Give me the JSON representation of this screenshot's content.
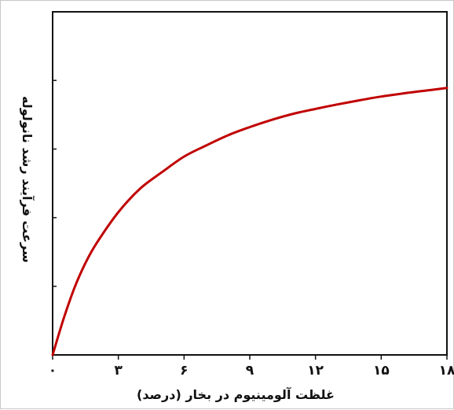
{
  "chart_data": {
    "type": "line",
    "title": "",
    "xlabel": "غلظت آلومینیوم در بخار (درصد)",
    "ylabel": "سرعت فرآیند رشد نانولوله",
    "xlim": [
      0,
      18
    ],
    "ylim": [
      0,
      10
    ],
    "x_ticks": [
      0,
      3,
      6,
      9,
      12,
      15,
      18
    ],
    "x_tick_labels": [
      "۰",
      "۳",
      "۶",
      "۹",
      "۱۲",
      "۱۵",
      "۱۸"
    ],
    "y_ticks": [
      0,
      2,
      4,
      6,
      8,
      10
    ],
    "y_tick_labels": [],
    "grid": false,
    "legend": "none",
    "series": [
      {
        "color": "#c00000",
        "x": [
          0,
          0.5,
          1,
          1.5,
          2,
          3,
          4,
          5,
          6,
          7,
          8,
          9,
          10,
          11,
          12,
          13,
          14,
          15,
          16,
          17,
          18
        ],
        "y": [
          0,
          1.05,
          1.96,
          2.68,
          3.25,
          4.16,
          4.85,
          5.33,
          5.78,
          6.1,
          6.4,
          6.64,
          6.85,
          7.03,
          7.17,
          7.3,
          7.42,
          7.53,
          7.62,
          7.7,
          7.78
        ]
      }
    ]
  }
}
